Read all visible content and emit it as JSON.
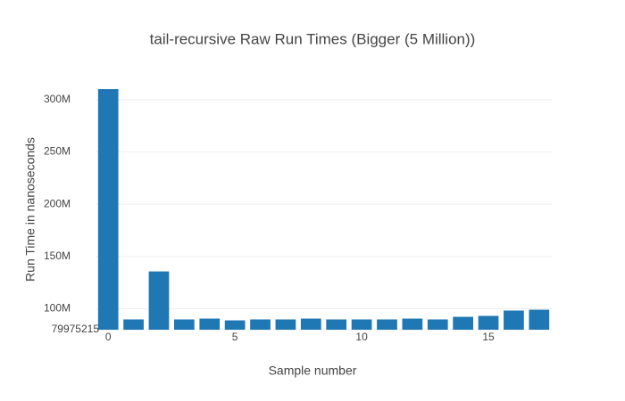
{
  "chart_data": {
    "type": "bar",
    "title": "tail-recursive Raw Run Times (Bigger (5 Million))",
    "x_label": "Sample number",
    "y_label": "Run Time in nanoseconds",
    "x": [
      0,
      1,
      2,
      3,
      4,
      5,
      6,
      7,
      8,
      9,
      10,
      11,
      12,
      13,
      14,
      15,
      16,
      17
    ],
    "values": [
      310000000,
      89800000,
      135700000,
      89800000,
      90600000,
      88900000,
      89800000,
      89800000,
      90600000,
      89800000,
      89800000,
      89800000,
      90600000,
      89800000,
      92300000,
      93200000,
      98300000,
      99100000
    ],
    "color": "#1f77b4",
    "xlim": [
      -0.5,
      17.5
    ],
    "xticks": [
      0,
      5,
      10,
      15
    ],
    "ylim": [
      79975215,
      310000000
    ],
    "yticks": [
      79975215,
      {
        "value": 100000000,
        "label": "100M"
      },
      {
        "value": 150000000,
        "label": "150M"
      },
      {
        "value": 200000000,
        "label": "200M"
      },
      {
        "value": 250000000,
        "label": "250M"
      },
      {
        "value": 300000000,
        "label": "300M"
      }
    ],
    "grid": true
  }
}
